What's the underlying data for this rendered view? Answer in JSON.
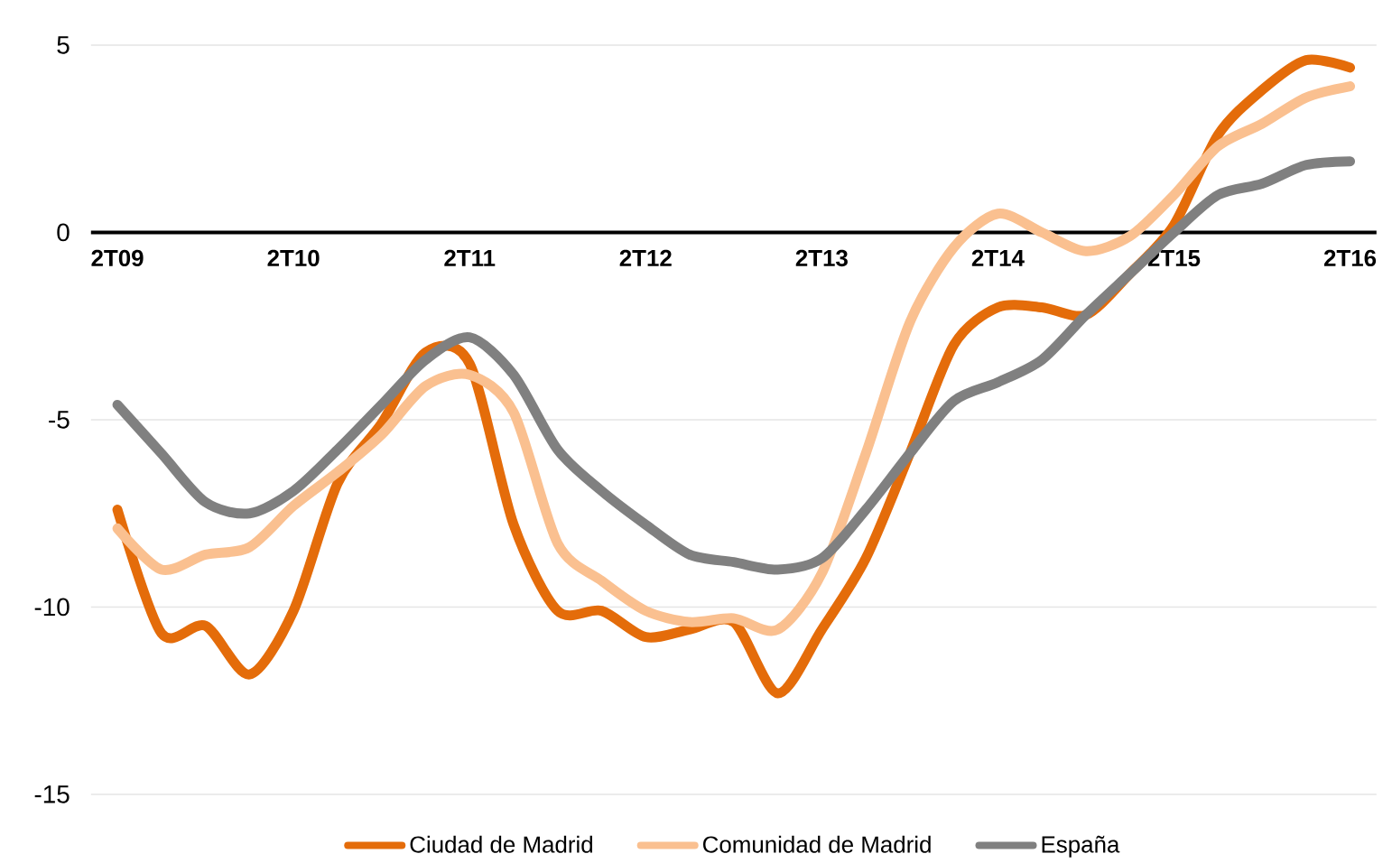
{
  "chart_data": {
    "type": "line",
    "categories": [
      "2T09",
      null,
      null,
      null,
      "2T10",
      null,
      null,
      null,
      "2T11",
      null,
      null,
      null,
      "2T12",
      null,
      null,
      null,
      "2T13",
      null,
      null,
      null,
      "2T14",
      null,
      null,
      null,
      "2T15",
      null,
      null,
      null,
      "2T16"
    ],
    "series": [
      {
        "name": "Ciudad de Madrid",
        "color": "#e46c0a",
        "values": [
          -7.4,
          -10.7,
          -10.5,
          -11.8,
          -10.1,
          -6.7,
          -5.1,
          -3.2,
          -3.5,
          -7.8,
          -10.1,
          -10.1,
          -10.8,
          -10.6,
          -10.4,
          -12.3,
          -10.6,
          -8.7,
          -5.9,
          -3.0,
          -2.0,
          -2.0,
          -2.2,
          -1.1,
          0.2,
          2.6,
          3.8,
          4.6,
          4.4
        ]
      },
      {
        "name": "Comunidad de Madrid",
        "color": "#fac090",
        "values": [
          -7.9,
          -9.0,
          -8.6,
          -8.4,
          -7.3,
          -6.4,
          -5.4,
          -4.1,
          -3.8,
          -4.8,
          -8.3,
          -9.3,
          -10.1,
          -10.4,
          -10.3,
          -10.6,
          -9.1,
          -5.9,
          -2.4,
          -0.4,
          0.5,
          0.0,
          -0.5,
          -0.1,
          1.0,
          2.3,
          2.9,
          3.6,
          3.9
        ]
      },
      {
        "name": "España",
        "color": "#808080",
        "values": [
          -4.6,
          -5.9,
          -7.2,
          -7.5,
          -6.9,
          -5.8,
          -4.6,
          -3.4,
          -2.8,
          -3.8,
          -5.8,
          -6.9,
          -7.8,
          -8.6,
          -8.8,
          -9.0,
          -8.7,
          -7.4,
          -5.9,
          -4.5,
          -4.0,
          -3.4,
          -2.2,
          -1.1,
          0.0,
          1.0,
          1.3,
          1.8,
          1.9
        ]
      }
    ],
    "ylim": [
      -15,
      5
    ],
    "yticks": [
      -15,
      -10,
      -5,
      0,
      5
    ],
    "grid": "y",
    "legend": "bottom",
    "line_style": "solid",
    "marker": "none"
  }
}
